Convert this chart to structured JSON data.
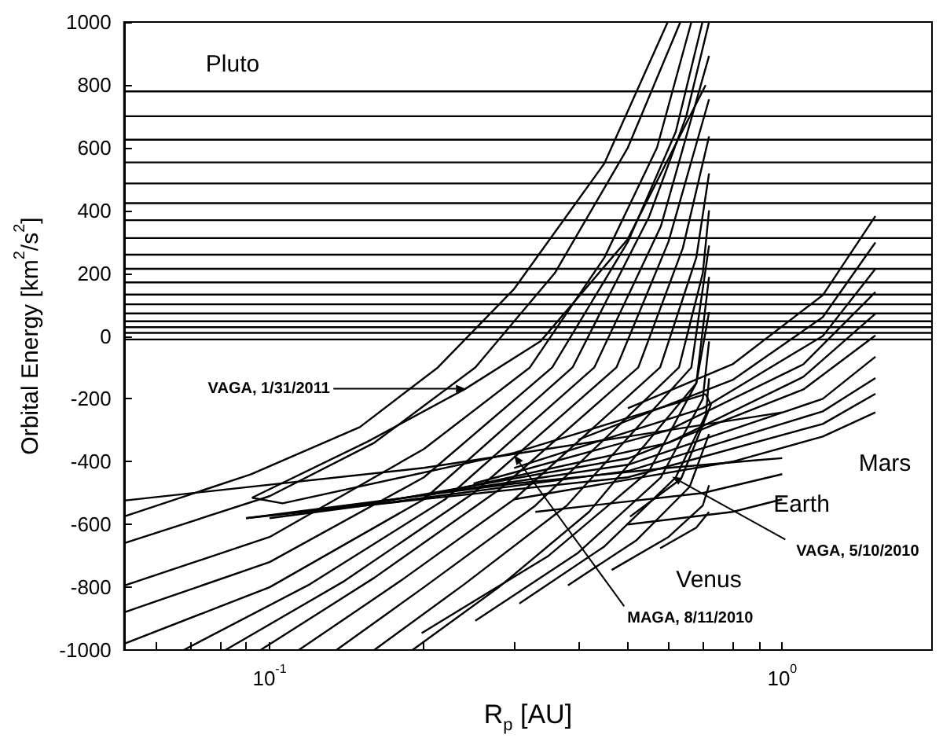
{
  "chart_data": {
    "type": "line",
    "xlabel": "R$_{p}$ [AU]",
    "ylabel": "Orbital Energy [km$^{2}$/s$^{2}$]",
    "log": "x",
    "xlim": [
      0.052,
      1.96
    ],
    "ylim": [
      -1000,
      1000
    ],
    "xticks": [
      {
        "value": 0.06,
        "label": null
      },
      {
        "value": 0.07,
        "label": null
      },
      {
        "value": 0.08,
        "label": null
      },
      {
        "value": 0.09,
        "label": null
      },
      {
        "value": 0.1,
        "label": "10$^{-1}$"
      },
      {
        "value": 0.2,
        "label": null
      },
      {
        "value": 0.3,
        "label": null
      },
      {
        "value": 0.4,
        "label": null
      },
      {
        "value": 0.5,
        "label": null
      },
      {
        "value": 0.6,
        "label": null
      },
      {
        "value": 0.7,
        "label": null
      },
      {
        "value": 0.8,
        "label": null
      },
      {
        "value": 0.9,
        "label": null
      },
      {
        "value": 1,
        "label": "10$^{0}$"
      }
    ],
    "yticks": [
      -1000,
      -800,
      -600,
      -400,
      -200,
      0,
      200,
      400,
      600,
      800,
      1000
    ],
    "series": [
      {
        "color": "#000000",
        "x": [
          0.052,
          1.96
        ],
        "values": [
          779,
          779
        ]
      },
      {
        "color": "#000000",
        "x": [
          0.052,
          1.96
        ],
        "values": [
          700,
          700
        ]
      },
      {
        "color": "#000000",
        "x": [
          0.052,
          1.96
        ],
        "values": [
          625,
          625
        ]
      },
      {
        "color": "#000000",
        "x": [
          0.052,
          1.96
        ],
        "values": [
          553,
          553
        ]
      },
      {
        "color": "#000000",
        "x": [
          0.052,
          1.96
        ],
        "values": [
          486,
          486
        ]
      },
      {
        "color": "#000000",
        "x": [
          0.052,
          1.96
        ],
        "values": [
          423,
          423
        ]
      },
      {
        "color": "#000000",
        "x": [
          0.052,
          1.96
        ],
        "values": [
          369,
          369
        ]
      },
      {
        "color": "#000000",
        "x": [
          0.052,
          1.96
        ],
        "values": [
          312,
          312
        ]
      },
      {
        "color": "#000000",
        "x": [
          0.052,
          1.96
        ],
        "values": [
          259,
          259
        ]
      },
      {
        "color": "#000000",
        "x": [
          0.052,
          1.96
        ],
        "values": [
          214,
          214
        ]
      },
      {
        "color": "#000000",
        "x": [
          0.052,
          1.96
        ],
        "values": [
          171,
          171
        ]
      },
      {
        "color": "#000000",
        "x": [
          0.052,
          1.96
        ],
        "values": [
          132,
          132
        ]
      },
      {
        "color": "#000000",
        "x": [
          0.052,
          1.96
        ],
        "values": [
          101,
          101
        ]
      },
      {
        "color": "#000000",
        "x": [
          0.052,
          1.96
        ],
        "values": [
          72,
          72
        ]
      },
      {
        "color": "#000000",
        "x": [
          0.052,
          1.96
        ],
        "values": [
          47,
          47
        ]
      },
      {
        "color": "#000000",
        "x": [
          0.052,
          1.96
        ],
        "values": [
          28,
          28
        ]
      },
      {
        "color": "#000000",
        "x": [
          0.052,
          1.96
        ],
        "values": [
          10,
          10
        ]
      },
      {
        "color": "#000000",
        "x": [
          0.052,
          1.96
        ],
        "values": [
          -11,
          -11
        ]
      },
      {
        "color": "#000000",
        "x": [
          0.052,
          0.092,
          0.15,
          0.213,
          0.3,
          0.45,
          0.598
        ],
        "values": [
          -575,
          -440,
          -290,
          -100,
          150,
          550,
          1000
        ]
      },
      {
        "color": "#000000",
        "x": [
          0.052,
          0.1,
          0.16,
          0.252,
          0.36,
          0.5,
          0.633
        ],
        "values": [
          -660,
          -510,
          -340,
          -100,
          200,
          600,
          1000
        ]
      },
      {
        "color": "#000000",
        "x": [
          0.052,
          0.1,
          0.2,
          0.322,
          0.45,
          0.57,
          0.665
        ],
        "values": [
          -795,
          -640,
          -360,
          -100,
          250,
          600,
          1000
        ]
      },
      {
        "color": "#000000",
        "x": [
          0.052,
          0.1,
          0.2,
          0.356,
          0.5,
          0.62,
          0.699
        ],
        "values": [
          -880,
          -720,
          -450,
          -100,
          300,
          650,
          1000
        ]
      },
      {
        "color": "#000000",
        "x": [
          0.052,
          0.1,
          0.2,
          0.39,
          0.55,
          0.65,
          0.72
        ],
        "values": [
          -980,
          -800,
          -520,
          -100,
          380,
          700,
          1000
        ]
      },
      {
        "color": "#000000",
        "x": [
          0.068,
          0.12,
          0.22,
          0.43,
          0.58,
          0.72
        ],
        "values": [
          -1000,
          -790,
          -520,
          -100,
          350,
          892
        ]
      },
      {
        "color": "#000000",
        "x": [
          0.082,
          0.14,
          0.25,
          0.475,
          0.6,
          0.72
        ],
        "values": [
          -1000,
          -780,
          -500,
          -100,
          300,
          754
        ]
      },
      {
        "color": "#000000",
        "x": [
          0.096,
          0.16,
          0.28,
          0.524,
          0.64,
          0.72
        ],
        "values": [
          -1000,
          -770,
          -490,
          -100,
          280,
          636
        ]
      },
      {
        "color": "#000000",
        "x": [
          0.114,
          0.18,
          0.3,
          0.578,
          0.68,
          0.72
        ],
        "values": [
          -1000,
          -780,
          -520,
          -100,
          250,
          518
        ]
      },
      {
        "color": "#000000",
        "x": [
          0.135,
          0.2,
          0.33,
          0.629,
          0.7,
          0.72
        ],
        "values": [
          -1000,
          -800,
          -540,
          -100,
          200,
          400
        ]
      },
      {
        "color": "#000000",
        "x": [
          0.16,
          0.24,
          0.38,
          0.665,
          0.72
        ],
        "values": [
          -1000,
          -790,
          -540,
          -100,
          288
        ]
      },
      {
        "color": "#000000",
        "x": [
          0.19,
          0.28,
          0.42,
          0.68,
          0.72
        ],
        "values": [
          -1000,
          -800,
          -560,
          -150,
          188
        ]
      },
      {
        "color": "#000000",
        "x": [
          0.198,
          0.35,
          0.55,
          0.68,
          0.72
        ],
        "values": [
          -946,
          -700,
          -430,
          -150,
          76
        ]
      },
      {
        "color": "#000000",
        "x": [
          0.252,
          0.4,
          0.58,
          0.7,
          0.72
        ],
        "values": [
          -907,
          -690,
          -450,
          -200,
          -17
        ]
      },
      {
        "color": "#000000",
        "x": [
          0.307,
          0.45,
          0.62,
          0.71,
          0.72
        ],
        "values": [
          -852,
          -670,
          -450,
          -250,
          -135
        ]
      },
      {
        "color": "#000000",
        "x": [
          0.382,
          0.52,
          0.66,
          0.72
        ],
        "values": [
          -794,
          -650,
          -480,
          -312
        ]
      },
      {
        "color": "#000000",
        "x": [
          0.465,
          0.6,
          0.7,
          0.72
        ],
        "values": [
          -745,
          -640,
          -540,
          -475
        ]
      },
      {
        "color": "#000000",
        "x": [
          0.578,
          0.68,
          0.72
        ],
        "values": [
          -676,
          -610,
          -560
        ]
      },
      {
        "color": "#000000",
        "x": [
          0.052,
          0.2,
          0.5,
          0.9,
          1.0
        ],
        "values": [
          -524,
          -420,
          -320,
          -255,
          -243
        ]
      },
      {
        "color": "#000000",
        "x": [
          0.09,
          0.3,
          0.6,
          0.9,
          1.0
        ],
        "values": [
          -580,
          -470,
          -420,
          -395,
          -389
        ]
      },
      {
        "color": "#000000",
        "x": [
          0.33,
          0.7,
          1.0
        ],
        "values": [
          -560,
          -500,
          -440
        ]
      },
      {
        "color": "#000000",
        "x": [
          0.5,
          0.8,
          1.0
        ],
        "values": [
          -600,
          -560,
          -520
        ]
      },
      {
        "color": "#000000",
        "x": [
          0.5,
          0.8,
          1.2,
          1.52
        ],
        "values": [
          -230,
          -90,
          130,
          382
        ]
      },
      {
        "color": "#000000",
        "x": [
          0.4,
          0.8,
          1.2,
          1.52
        ],
        "values": [
          -330,
          -140,
          60,
          298
        ]
      },
      {
        "color": "#000000",
        "x": [
          0.3,
          0.7,
          1.2,
          1.52
        ],
        "values": [
          -420,
          -230,
          0,
          214
        ]
      },
      {
        "color": "#000000",
        "x": [
          0.25,
          0.6,
          1.1,
          1.52
        ],
        "values": [
          -470,
          -300,
          -90,
          140
        ]
      },
      {
        "color": "#000000",
        "x": [
          0.2,
          0.6,
          1.1,
          1.52
        ],
        "values": [
          -510,
          -340,
          -130,
          71
        ]
      },
      {
        "color": "#000000",
        "x": [
          0.15,
          0.5,
          1.1,
          1.52
        ],
        "values": [
          -540,
          -390,
          -170,
          2
        ]
      },
      {
        "color": "#000000",
        "x": [
          0.12,
          0.5,
          1.2,
          1.52
        ],
        "values": [
          -560,
          -410,
          -200,
          -66
        ]
      },
      {
        "color": "#000000",
        "x": [
          0.1,
          0.5,
          1.2,
          1.52
        ],
        "values": [
          -580,
          -430,
          -240,
          -134
        ]
      },
      {
        "color": "#000000",
        "x": [
          0.09,
          0.5,
          1.2,
          1.52
        ],
        "values": [
          -580,
          -450,
          -280,
          -184
        ]
      },
      {
        "color": "#000000",
        "x": [
          0.3,
          0.8,
          1.2,
          1.52
        ],
        "values": [
          -520,
          -400,
          -320,
          -243
        ]
      },
      {
        "color": "#000000",
        "x": [
          0.0924,
          0.155,
          0.241,
          0.338,
          0.499,
          0.709
        ],
        "values": [
          -515,
          -337,
          -168,
          -16,
          307,
          799
        ]
      },
      {
        "color": "#000000",
        "x": [
          0.0924,
          0.106,
          0.3,
          0.709
        ],
        "values": [
          -515,
          -533,
          -372,
          -185
        ]
      },
      {
        "color": "#000000",
        "x": [
          0.709,
          0.726,
          0.635,
          0.505
        ],
        "values": [
          -185,
          -219,
          -455,
          -575
        ]
      }
    ],
    "annotations": [
      "Pluto",
      "Venus",
      "Earth",
      "Mars",
      {
        "text": "VAGA, 1/31/2011",
        "x": 0.241,
        "y": -168
      },
      {
        "text": "MAGA, 8/11/2010",
        "x": 0.3,
        "y": -380
      },
      {
        "text": "VAGA, 5/10/2010",
        "x": 0.61,
        "y": -448
      }
    ]
  }
}
